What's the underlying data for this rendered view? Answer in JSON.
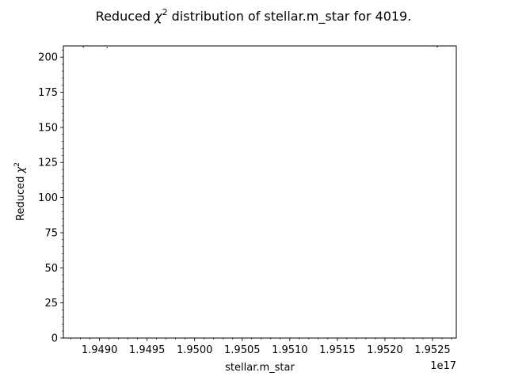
{
  "chart_data": {
    "type": "scatter",
    "title_prefix": "Reduced ",
    "title_symbol": "χ",
    "title_superscript": "2",
    "title_suffix": " distribution of stellar.m_star for 4019.",
    "xlabel": "stellar.m_star",
    "ylabel_prefix": "Reduced ",
    "ylabel_symbol": "χ",
    "ylabel_superscript": "2",
    "x_offset_label": "1e17",
    "xlim": [
      1.94862,
      1.95275
    ],
    "ylim": [
      0,
      208
    ],
    "x_ticks": [
      {
        "value": 1.949,
        "label": "1.9490"
      },
      {
        "value": 1.9495,
        "label": "1.9495"
      },
      {
        "value": 1.95,
        "label": "1.9500"
      },
      {
        "value": 1.9505,
        "label": "1.9505"
      },
      {
        "value": 1.951,
        "label": "1.9510"
      },
      {
        "value": 1.9515,
        "label": "1.9515"
      },
      {
        "value": 1.952,
        "label": "1.9520"
      },
      {
        "value": 1.9525,
        "label": "1.9525"
      }
    ],
    "y_ticks": [
      {
        "value": 0,
        "label": "0"
      },
      {
        "value": 25,
        "label": "25"
      },
      {
        "value": 50,
        "label": "50"
      },
      {
        "value": 75,
        "label": "75"
      },
      {
        "value": 100,
        "label": "100"
      },
      {
        "value": 125,
        "label": "125"
      },
      {
        "value": 150,
        "label": "150"
      },
      {
        "value": 175,
        "label": "175"
      },
      {
        "value": 200,
        "label": "200"
      }
    ],
    "x_minor_step": 0.0001,
    "y_minor_step": 5,
    "points": [
      {
        "x": 1.94883,
        "y": 207.3
      },
      {
        "x": 1.94908,
        "y": 206.9
      },
      {
        "x": 1.95255,
        "y": 207.4
      }
    ],
    "colors": {
      "axis": "#000000",
      "marker": "#555555",
      "background": "#ffffff"
    }
  }
}
